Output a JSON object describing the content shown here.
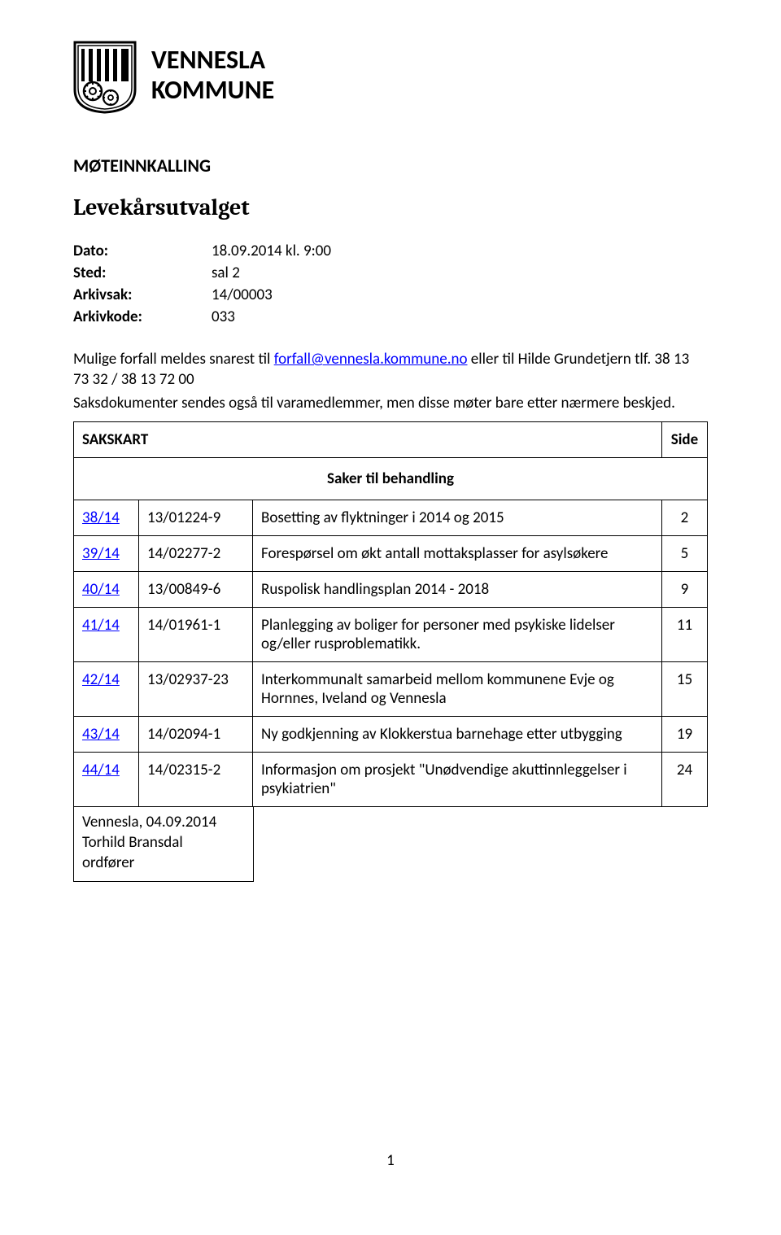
{
  "header": {
    "line1": "VENNESLA",
    "line2": "KOMMUNE"
  },
  "meeting_heading": "MØTEINNKALLING",
  "subtitle": "Levekårsutvalget",
  "meta": {
    "dato_label": "Dato:",
    "dato_value": "18.09.2014 kl. 9:00",
    "sted_label": "Sted:",
    "sted_value": "sal 2",
    "arkivsak_label": "Arkivsak:",
    "arkivsak_value": "14/00003",
    "arkivkode_label": "Arkivkode:",
    "arkivkode_value": "033"
  },
  "para1_a": "Mulige forfall meldes snarest til ",
  "para1_link": "forfall@vennesla.kommune.no",
  "para1_b": " eller til Hilde Grundetjern tlf. 38 13 73 32 / 38 13 72 00",
  "para2": "Saksdokumenter sendes også til varamedlemmer, men disse møter bare etter nærmere beskjed.",
  "table": {
    "sakskart_label": "SAKSKART",
    "side_label": "Side",
    "subhead": "Saker til behandling",
    "rows": [
      {
        "id": "38/14",
        "caseno": "13/01224-9",
        "title": "Bosetting av flyktninger i 2014 og 2015",
        "page": "2"
      },
      {
        "id": "39/14",
        "caseno": "14/02277-2",
        "title": "Forespørsel om økt antall mottaksplasser for asylsøkere",
        "page": "5"
      },
      {
        "id": "40/14",
        "caseno": "13/00849-6",
        "title": "Ruspolisk handlingsplan 2014 - 2018",
        "page": "9"
      },
      {
        "id": "41/14",
        "caseno": "14/01961-1",
        "title": "Planlegging av boliger for personer med psykiske lidelser og/eller rusproblematikk.",
        "page": "11"
      },
      {
        "id": "42/14",
        "caseno": "13/02937-23",
        "title": "Interkommunalt samarbeid mellom kommunene Evje og Hornnes, Iveland og Vennesla",
        "page": "15"
      },
      {
        "id": "43/14",
        "caseno": "14/02094-1",
        "title": "Ny godkjenning av Klokkerstua barnehage etter utbygging",
        "page": "19"
      },
      {
        "id": "44/14",
        "caseno": "14/02315-2",
        "title": "Informasjon om prosjekt \"Unødvendige akuttinnleggelser i psykiatrien\"",
        "page": "24"
      }
    ]
  },
  "signature": {
    "place_date": "Vennesla, 04.09.2014",
    "name": "Torhild Bransdal",
    "role": "ordfører"
  },
  "page_number": "1",
  "colors": {
    "text": "#000000",
    "link": "#0000ff",
    "border": "#000000",
    "background": "#ffffff"
  },
  "fonts": {
    "body_family": "Calibri, Arial, sans-serif",
    "subtitle_family": "Cambria, Georgia, serif",
    "header_size_pt": 24,
    "subtitle_size_pt": 21,
    "body_size_pt": 14
  }
}
